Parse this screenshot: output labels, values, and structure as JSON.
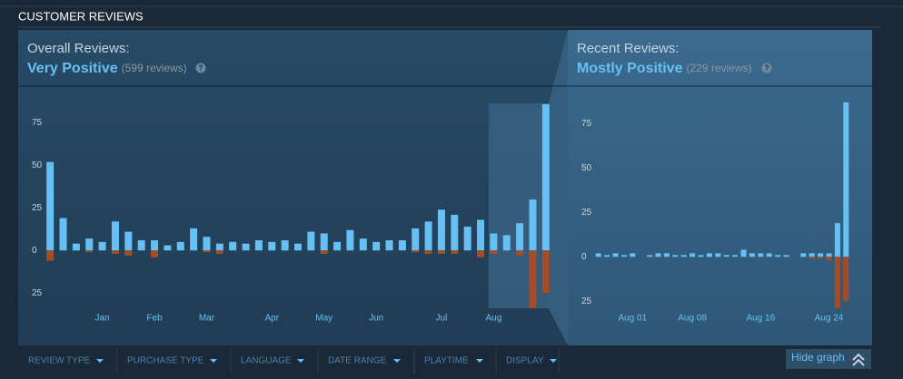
{
  "section_title": "CUSTOMER REVIEWS",
  "chart_data": [
    {
      "type": "bar",
      "title": "Overall Reviews:",
      "rating": "Very Positive",
      "count_label": "(599 reviews)",
      "help": "?",
      "categories": [
        null,
        null,
        null,
        null,
        "Jan",
        null,
        null,
        null,
        "Feb",
        null,
        null,
        null,
        "Mar",
        null,
        null,
        null,
        null,
        "Apr",
        null,
        null,
        null,
        "May",
        null,
        null,
        null,
        "Jun",
        null,
        null,
        null,
        null,
        "Jul",
        null,
        null,
        null,
        "Aug",
        null,
        null,
        null,
        null
      ],
      "series": [
        {
          "color": "#66c0f4",
          "values": [
            52,
            19,
            4,
            7,
            5,
            17,
            11,
            6,
            6,
            3,
            5,
            13,
            8,
            4,
            5,
            4,
            6,
            5,
            6,
            4,
            11,
            10,
            5,
            12,
            7,
            5,
            6,
            6,
            13,
            17,
            24,
            21,
            14,
            18,
            10,
            9,
            16,
            30,
            86
          ]
        },
        {
          "color": "#a34c25",
          "values": [
            -6,
            0,
            0,
            -1,
            0,
            -2,
            -3,
            0,
            -4,
            0,
            0,
            0,
            -1,
            -2,
            0,
            0,
            0,
            0,
            0,
            0,
            0,
            -2,
            0,
            0,
            0,
            0,
            0,
            0,
            -1,
            -2,
            -2,
            -2,
            0,
            -4,
            -2,
            0,
            -3,
            -34,
            -25
          ]
        }
      ],
      "ylim": [
        -34,
        87
      ],
      "yticks": [
        {
          "value": -25,
          "label": "25"
        },
        0,
        25,
        50,
        75
      ]
    },
    {
      "type": "bar",
      "title": "Recent Reviews:",
      "rating": "Mostly Positive",
      "count_label": "(229 reviews)",
      "help": "?",
      "categories": [
        null,
        null,
        null,
        null,
        "Aug 01",
        null,
        null,
        null,
        null,
        null,
        null,
        "Aug 08",
        null,
        null,
        null,
        null,
        null,
        null,
        null,
        "Aug 16",
        null,
        null,
        null,
        null,
        null,
        null,
        null,
        "Aug 24",
        null,
        null
      ],
      "series": [
        {
          "color": "#66c0f4",
          "values": [
            2,
            1,
            2,
            1,
            2,
            0,
            1,
            2,
            2,
            1,
            1,
            2,
            1,
            2,
            2,
            1,
            1,
            4,
            2,
            2,
            2,
            1,
            1,
            0,
            2,
            2,
            2,
            2,
            19,
            87
          ]
        },
        {
          "color": "#a34c25",
          "values": [
            0,
            0,
            0,
            0,
            0,
            0,
            0,
            0,
            0,
            0,
            0,
            0,
            0,
            0,
            0,
            0,
            0,
            0,
            0,
            0,
            0,
            0,
            0,
            0,
            0,
            -1,
            -1,
            -2,
            -29,
            -25
          ]
        }
      ],
      "ylim": [
        -29,
        87
      ],
      "yticks": [
        {
          "value": -25,
          "label": "25"
        },
        0,
        25,
        50,
        75
      ]
    }
  ],
  "filters": [
    "REVIEW TYPE",
    "PURCHASE TYPE",
    "LANGUAGE",
    "DATE RANGE",
    "PLAYTIME",
    "DISPLAY"
  ],
  "hide_graph": "Hide graph"
}
